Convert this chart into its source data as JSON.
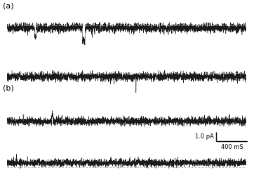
{
  "fig_width": 3.92,
  "fig_height": 2.52,
  "dpi": 100,
  "background_color": "#ffffff",
  "trace_color": "#1a1a1a",
  "dotted_line_color": "#aaaaaa",
  "panel_a_label": "(a)",
  "panel_b_label": "(b)",
  "scale_bar_current": "1.0 pA",
  "scale_bar_time": "400 mS",
  "n_points": 3000,
  "trace_linewidth": 0.35,
  "dotted_linewidth": 0.5
}
